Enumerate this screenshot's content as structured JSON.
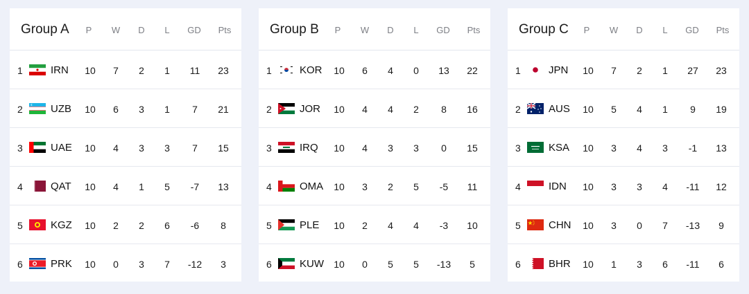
{
  "columns": [
    "P",
    "W",
    "D",
    "L",
    "GD",
    "Pts"
  ],
  "groups": [
    {
      "title": "Group A",
      "rows": [
        {
          "pos": "1",
          "code": "IRN",
          "flag": "iran-flag",
          "P": "10",
          "W": "7",
          "D": "2",
          "L": "1",
          "GD": "11",
          "Pts": "23"
        },
        {
          "pos": "2",
          "code": "UZB",
          "flag": "uzbekistan-flag",
          "P": "10",
          "W": "6",
          "D": "3",
          "L": "1",
          "GD": "7",
          "Pts": "21"
        },
        {
          "pos": "3",
          "code": "UAE",
          "flag": "uae-flag",
          "P": "10",
          "W": "4",
          "D": "3",
          "L": "3",
          "GD": "7",
          "Pts": "15"
        },
        {
          "pos": "4",
          "code": "QAT",
          "flag": "qatar-flag",
          "P": "10",
          "W": "4",
          "D": "1",
          "L": "5",
          "GD": "-7",
          "Pts": "13"
        },
        {
          "pos": "5",
          "code": "KGZ",
          "flag": "kyrgyzstan-flag",
          "P": "10",
          "W": "2",
          "D": "2",
          "L": "6",
          "GD": "-6",
          "Pts": "8"
        },
        {
          "pos": "6",
          "code": "PRK",
          "flag": "north-korea-flag",
          "P": "10",
          "W": "0",
          "D": "3",
          "L": "7",
          "GD": "-12",
          "Pts": "3"
        }
      ]
    },
    {
      "title": "Group B",
      "rows": [
        {
          "pos": "1",
          "code": "KOR",
          "flag": "south-korea-flag",
          "P": "10",
          "W": "6",
          "D": "4",
          "L": "0",
          "GD": "13",
          "Pts": "22"
        },
        {
          "pos": "2",
          "code": "JOR",
          "flag": "jordan-flag",
          "P": "10",
          "W": "4",
          "D": "4",
          "L": "2",
          "GD": "8",
          "Pts": "16"
        },
        {
          "pos": "3",
          "code": "IRQ",
          "flag": "iraq-flag",
          "P": "10",
          "W": "4",
          "D": "3",
          "L": "3",
          "GD": "0",
          "Pts": "15"
        },
        {
          "pos": "4",
          "code": "OMA",
          "flag": "oman-flag",
          "P": "10",
          "W": "3",
          "D": "2",
          "L": "5",
          "GD": "-5",
          "Pts": "11"
        },
        {
          "pos": "5",
          "code": "PLE",
          "flag": "palestine-flag",
          "P": "10",
          "W": "2",
          "D": "4",
          "L": "4",
          "GD": "-3",
          "Pts": "10"
        },
        {
          "pos": "6",
          "code": "KUW",
          "flag": "kuwait-flag",
          "P": "10",
          "W": "0",
          "D": "5",
          "L": "5",
          "GD": "-13",
          "Pts": "5"
        }
      ]
    },
    {
      "title": "Group C",
      "rows": [
        {
          "pos": "1",
          "code": "JPN",
          "flag": "japan-flag",
          "P": "10",
          "W": "7",
          "D": "2",
          "L": "1",
          "GD": "27",
          "Pts": "23"
        },
        {
          "pos": "2",
          "code": "AUS",
          "flag": "australia-flag",
          "P": "10",
          "W": "5",
          "D": "4",
          "L": "1",
          "GD": "9",
          "Pts": "19"
        },
        {
          "pos": "3",
          "code": "KSA",
          "flag": "saudi-arabia-flag",
          "P": "10",
          "W": "3",
          "D": "4",
          "L": "3",
          "GD": "-1",
          "Pts": "13"
        },
        {
          "pos": "4",
          "code": "IDN",
          "flag": "indonesia-flag",
          "P": "10",
          "W": "3",
          "D": "3",
          "L": "4",
          "GD": "-11",
          "Pts": "12"
        },
        {
          "pos": "5",
          "code": "CHN",
          "flag": "china-flag",
          "P": "10",
          "W": "3",
          "D": "0",
          "L": "7",
          "GD": "-13",
          "Pts": "9"
        },
        {
          "pos": "6",
          "code": "BHR",
          "flag": "bahrain-flag",
          "P": "10",
          "W": "1",
          "D": "3",
          "L": "6",
          "GD": "-11",
          "Pts": "6"
        }
      ]
    }
  ]
}
